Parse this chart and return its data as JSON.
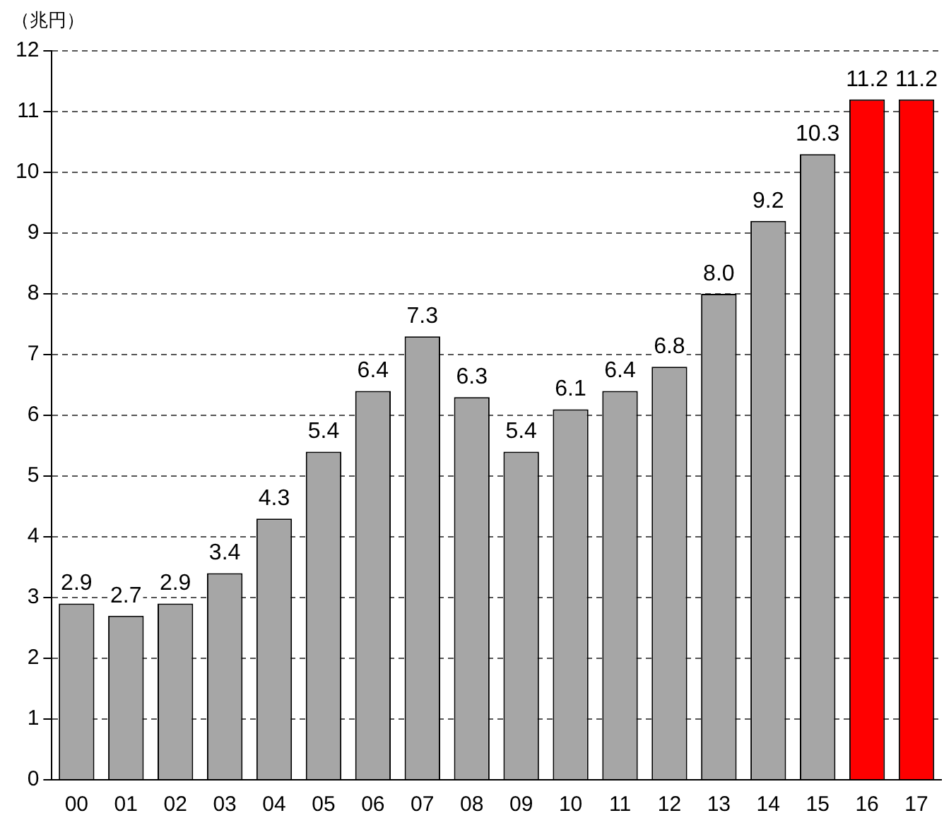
{
  "chart_data": {
    "type": "bar",
    "ylabel": "（兆円）",
    "categories": [
      "00",
      "01",
      "02",
      "03",
      "04",
      "05",
      "06",
      "07",
      "08",
      "09",
      "10",
      "11",
      "12",
      "13",
      "14",
      "15",
      "16",
      "17"
    ],
    "values": [
      2.9,
      2.7,
      2.9,
      3.4,
      4.3,
      5.4,
      6.4,
      7.3,
      6.3,
      5.4,
      6.1,
      6.4,
      6.8,
      8.0,
      9.2,
      10.3,
      11.2,
      11.2
    ],
    "colors": [
      "#a6a6a6",
      "#a6a6a6",
      "#a6a6a6",
      "#a6a6a6",
      "#a6a6a6",
      "#a6a6a6",
      "#a6a6a6",
      "#a6a6a6",
      "#a6a6a6",
      "#a6a6a6",
      "#a6a6a6",
      "#a6a6a6",
      "#a6a6a6",
      "#a6a6a6",
      "#a6a6a6",
      "#a6a6a6",
      "#ff0000",
      "#ff0000"
    ],
    "ylim": [
      0,
      12
    ],
    "yticks": [
      0,
      1,
      2,
      3,
      4,
      5,
      6,
      7,
      8,
      9,
      10,
      11,
      12
    ],
    "value_labels": [
      "2.9",
      "2.7",
      "2.9",
      "3.4",
      "4.3",
      "5.4",
      "6.4",
      "7.3",
      "6.3",
      "5.4",
      "6.1",
      "6.4",
      "6.8",
      "8.0",
      "9.2",
      "10.3",
      "11.2",
      "11.2"
    ],
    "grid": "y",
    "legend": false
  }
}
